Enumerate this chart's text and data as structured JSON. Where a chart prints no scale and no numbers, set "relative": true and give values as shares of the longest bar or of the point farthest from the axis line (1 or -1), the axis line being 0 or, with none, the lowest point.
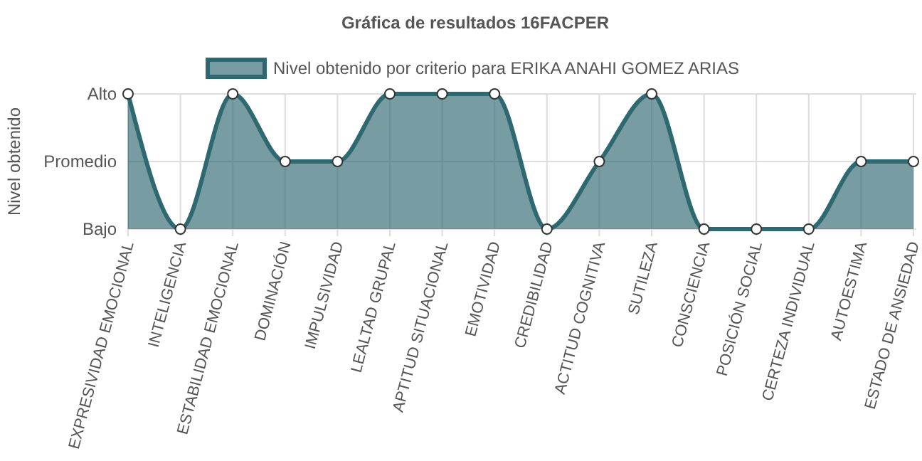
{
  "chart_data": {
    "type": "area",
    "title": "Gráfica de resultados 16FACPER",
    "ylabel": "Nivel obtenido",
    "relative": true,
    "categories": [
      "EXPRESIVIDAD EMOCIONAL",
      "INTELIGENCIA",
      "ESTABILIDAD EMOCIONAL",
      "DOMINACIÓN",
      "IMPULSIVIDAD",
      "LEALTAD GRUPAL",
      "APTITUD SITUACIONAL",
      "EMOTIVIDAD",
      "CREDIBILIDAD",
      "ACTITUD COGNITIVA",
      "SUTILEZA",
      "CONSCIENCIA",
      "POSICIÓN SOCIAL",
      "CERTEZA INDIVIDUAL",
      "AUTOESTIMA",
      "ESTADO DE ANSIEDAD"
    ],
    "series": [
      {
        "name": "Nivel obtenido por criterio para ERIKA ANAHI GOMEZ ARIAS",
        "color": "#2e6870",
        "values": [
          1,
          0,
          1,
          0.5,
          0.5,
          1,
          1,
          1,
          0,
          0.5,
          1,
          0,
          0,
          0,
          0.5,
          0.5
        ]
      }
    ],
    "annotations": [
      "Bajo",
      "Promedio",
      "Alto"
    ],
    "grid": true,
    "legend": "top",
    "marker": "circle",
    "line_style": "solid"
  }
}
